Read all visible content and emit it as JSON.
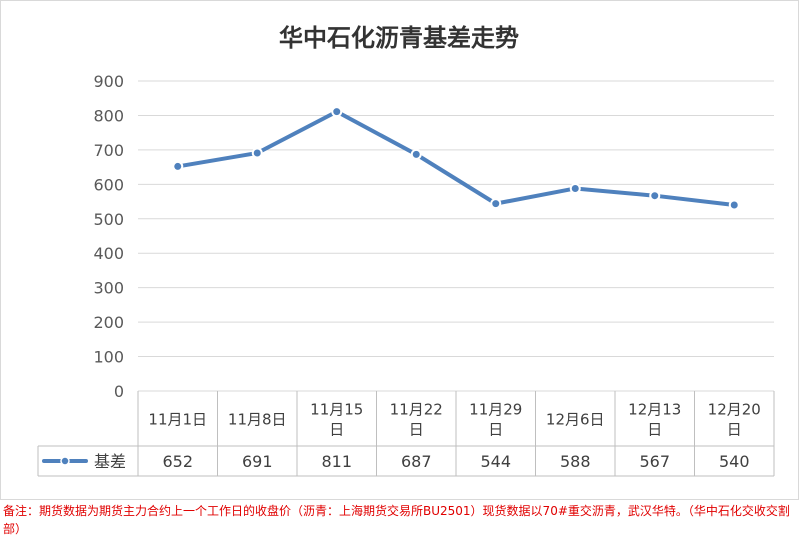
{
  "chart_data": {
    "type": "line",
    "title": "华中石化沥青基差走势",
    "categories": [
      "11月1日",
      "11月8日",
      "11月15日",
      "11月22日",
      "11月29日",
      "12月6日",
      "12月13日",
      "12月20日"
    ],
    "series": [
      {
        "name": "基差",
        "values": [
          652,
          691,
          811,
          687,
          544,
          588,
          567,
          540
        ],
        "color": "#4f81bd"
      }
    ],
    "y_ticks": [
      "900",
      "800",
      "700",
      "600",
      "500",
      "400",
      "300",
      "200",
      "100",
      "0"
    ],
    "ylim": [
      0,
      900
    ],
    "grid": true,
    "legend": "data-table"
  },
  "footnote": "备注：期货数据为期货主力合约上一个工作日的收盘价（沥青：上海期货交易所BU2501）现货数据以70#重交沥青，武汉华特。（华中石化交收交割部）"
}
